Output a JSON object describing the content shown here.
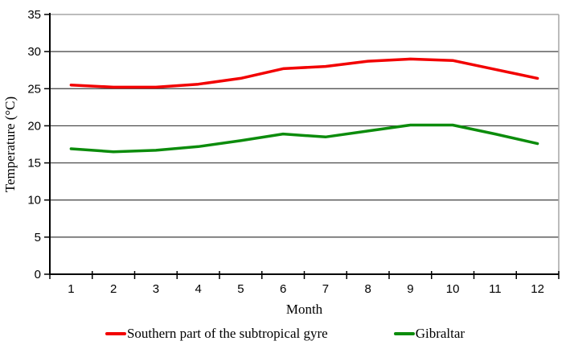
{
  "chart_data": {
    "type": "line",
    "title": "",
    "xlabel": "Month",
    "ylabel": "Temperature (°C)",
    "x": [
      1,
      2,
      3,
      4,
      5,
      6,
      7,
      8,
      9,
      10,
      11,
      12
    ],
    "x_ticks": [
      "1",
      "2",
      "3",
      "4",
      "5",
      "6",
      "7",
      "8",
      "9",
      "10",
      "11",
      "12"
    ],
    "y_ticks": [
      "0",
      "5",
      "10",
      "15",
      "20",
      "25",
      "30",
      "35"
    ],
    "ylim": [
      0,
      35
    ],
    "ytick_step": 5,
    "grid": "horizontal",
    "legend_position": "bottom",
    "series": [
      {
        "name": "Southern part of the subtropical gyre",
        "color": "#f20000",
        "values": [
          25.5,
          25.2,
          25.2,
          25.6,
          26.4,
          27.7,
          28.0,
          28.7,
          29.0,
          28.8,
          27.6,
          26.4
        ]
      },
      {
        "name": "Gibraltar",
        "color": "#0c8c0c",
        "values": [
          16.9,
          16.5,
          16.7,
          17.2,
          18.0,
          18.9,
          18.5,
          19.3,
          20.1,
          20.1,
          18.9,
          17.6
        ]
      }
    ],
    "colors": {
      "gridline": "#3f3f3f",
      "border": "#a6a6a6",
      "axis": "#000000"
    }
  }
}
